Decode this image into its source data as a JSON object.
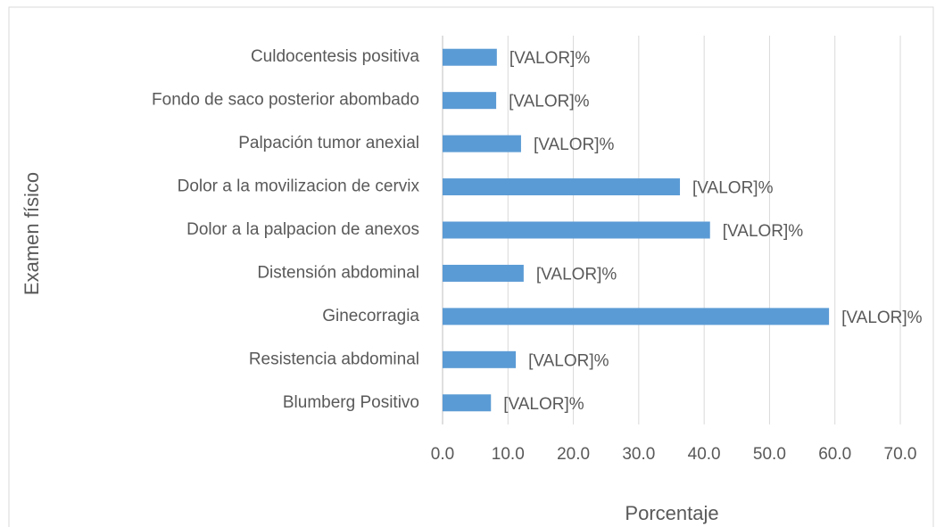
{
  "chart_data": {
    "type": "bar",
    "orientation": "horizontal",
    "xlabel": "Porcentaje",
    "ylabel": "Examen físico",
    "categories": [
      "Culdocentesis positiva",
      "Fondo de saco posterior abombado",
      "Palpación tumor anexial",
      "Dolor a la movilizacion de cervix",
      "Dolor a la palpacion de anexos",
      "Distensión abdominal",
      "Ginecorragia",
      "Resistencia abdominal",
      "Blumberg Positivo"
    ],
    "values": [
      8.3,
      8.2,
      12.0,
      36.3,
      40.9,
      12.4,
      59.1,
      11.2,
      7.4
    ],
    "value_labels": [
      "[VALOR]%",
      "[VALOR]%",
      "[VALOR]%",
      "[VALOR]%",
      "[VALOR]%",
      "[VALOR]%",
      "[VALOR]%",
      "[VALOR]%",
      "[VALOR]%"
    ],
    "color": "#5b9bd5",
    "xlim": [
      0,
      70
    ],
    "xticks": [
      {
        "value": 0,
        "label": "0.0"
      },
      {
        "value": 10,
        "label": "10.0"
      },
      {
        "value": 20,
        "label": "20.0"
      },
      {
        "value": 30,
        "label": "30.0"
      },
      {
        "value": 40,
        "label": "40.0"
      },
      {
        "value": 50,
        "label": "50.0"
      },
      {
        "value": 60,
        "label": "60.0"
      },
      {
        "value": 70,
        "label": "70.0"
      }
    ],
    "grid": true
  }
}
